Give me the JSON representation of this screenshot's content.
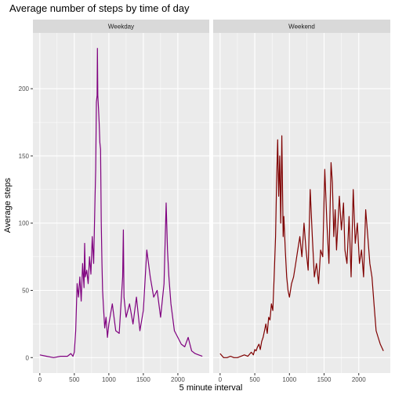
{
  "chart_data": {
    "type": "line",
    "title": "Average number of steps by time of day",
    "xlabel": "5 minute interval",
    "ylabel": "Average steps",
    "xlim": [
      -100,
      2455
    ],
    "ylim": [
      -11.5,
      241.5
    ],
    "x_ticks": [
      0,
      500,
      1000,
      1500,
      2000
    ],
    "y_ticks": [
      0,
      50,
      100,
      150,
      200
    ],
    "grid": true,
    "legend": "none",
    "facets": [
      {
        "label": "Weekday",
        "color": "#7f007f",
        "series": [
          {
            "x": [
              0,
              100,
              200,
              300,
              400,
              450,
              480,
              500,
              520,
              540,
              560,
              580,
              600,
              620,
              640,
              650,
              660,
              680,
              700,
              720,
              740,
              760,
              780,
              800,
              810,
              820,
              830,
              835,
              840,
              850,
              860,
              870,
              880,
              890,
              900,
              910,
              920,
              940,
              960,
              980,
              1000,
              1050,
              1100,
              1150,
              1200,
              1210,
              1220,
              1250,
              1300,
              1350,
              1400,
              1450,
              1500,
              1550,
              1600,
              1650,
              1700,
              1750,
              1800,
              1830,
              1850,
              1870,
              1900,
              1950,
              2000,
              2050,
              2100,
              2150,
              2200,
              2250,
              2300,
              2355
            ],
            "y": [
              2,
              1,
              0,
              1,
              1,
              3,
              1,
              4,
              20,
              55,
              45,
              60,
              42,
              70,
              52,
              85,
              60,
              65,
              55,
              75,
              62,
              90,
              70,
              120,
              140,
              190,
              195,
              230,
              195,
              185,
              175,
              160,
              155,
              100,
              70,
              50,
              40,
              22,
              30,
              15,
              25,
              40,
              20,
              18,
              60,
              95,
              45,
              30,
              40,
              25,
              45,
              20,
              35,
              80,
              60,
              45,
              50,
              30,
              55,
              115,
              80,
              60,
              40,
              20,
              15,
              10,
              8,
              15,
              5,
              3,
              2,
              1
            ]
          }
        ]
      },
      {
        "label": "Weekend",
        "color": "#7f0000",
        "series": [
          {
            "x": [
              0,
              50,
              100,
              150,
              200,
              250,
              300,
              350,
              400,
              450,
              480,
              500,
              520,
              540,
              560,
              580,
              600,
              620,
              640,
              660,
              680,
              700,
              720,
              740,
              760,
              780,
              800,
              815,
              830,
              845,
              860,
              875,
              890,
              900,
              910,
              920,
              940,
              960,
              980,
              1000,
              1030,
              1060,
              1090,
              1120,
              1150,
              1180,
              1210,
              1240,
              1270,
              1300,
              1330,
              1360,
              1390,
              1420,
              1450,
              1480,
              1510,
              1540,
              1570,
              1600,
              1620,
              1640,
              1660,
              1680,
              1700,
              1720,
              1750,
              1780,
              1800,
              1830,
              1860,
              1890,
              1920,
              1950,
              1980,
              2010,
              2040,
              2070,
              2100,
              2130,
              2160,
              2190,
              2220,
              2250,
              2280,
              2310,
              2355
            ],
            "y": [
              3,
              0,
              0,
              1,
              0,
              0,
              1,
              2,
              1,
              4,
              2,
              6,
              5,
              8,
              10,
              6,
              12,
              15,
              20,
              25,
              18,
              30,
              28,
              40,
              35,
              60,
              90,
              130,
              162,
              120,
              150,
              100,
              165,
              125,
              90,
              105,
              80,
              60,
              50,
              45,
              55,
              60,
              70,
              80,
              90,
              75,
              100,
              80,
              65,
              125,
              90,
              60,
              70,
              55,
              80,
              75,
              140,
              100,
              70,
              145,
              130,
              90,
              110,
              80,
              100,
              120,
              95,
              115,
              80,
              70,
              105,
              60,
              125,
              85,
              100,
              70,
              80,
              60,
              110,
              90,
              70,
              60,
              40,
              20,
              15,
              10,
              5
            ]
          }
        ]
      }
    ]
  }
}
